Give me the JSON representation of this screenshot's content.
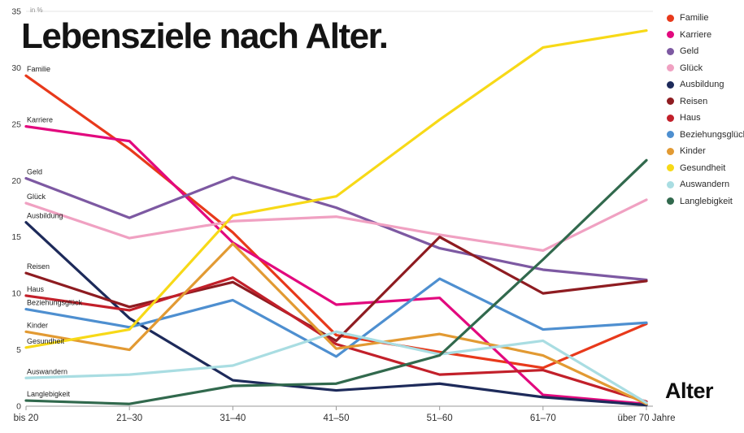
{
  "title": "Lebensziele nach Alter.",
  "chart_data": {
    "type": "line",
    "title": "Lebensziele nach Alter.",
    "xlabel": "Alter",
    "ylabel": "in %",
    "ylim": [
      0,
      35
    ],
    "y_ticks": [
      0,
      5,
      10,
      15,
      20,
      25,
      30,
      35
    ],
    "grid": false,
    "legend_position": "top-right",
    "categories": [
      "bis 20",
      "21–30",
      "31–40",
      "41–50",
      "51–60",
      "61–70",
      "über 70 Jahre"
    ],
    "series": [
      {
        "name": "Familie",
        "color": "#e8391b",
        "values": [
          29.3,
          22.8,
          15.4,
          6.3,
          4.8,
          3.4,
          7.3
        ]
      },
      {
        "name": "Karriere",
        "color": "#e2097e",
        "values": [
          24.8,
          23.5,
          14.5,
          9.0,
          9.6,
          1.0,
          0.2
        ]
      },
      {
        "name": "Geld",
        "color": "#7d59a2",
        "values": [
          20.2,
          16.7,
          20.3,
          17.6,
          14.0,
          12.1,
          11.2
        ]
      },
      {
        "name": "Glück",
        "color": "#f0a1c2",
        "values": [
          18.0,
          14.9,
          16.4,
          16.8,
          15.2,
          13.8,
          18.3
        ]
      },
      {
        "name": "Ausbildung",
        "color": "#1d2a5a",
        "values": [
          16.3,
          7.8,
          2.3,
          1.4,
          2.0,
          0.8,
          0.1
        ]
      },
      {
        "name": "Reisen",
        "color": "#8e1c21",
        "values": [
          11.8,
          8.8,
          11.0,
          5.8,
          15.0,
          10.0,
          11.1
        ]
      },
      {
        "name": "Haus",
        "color": "#c2202a",
        "values": [
          9.8,
          8.5,
          11.4,
          5.5,
          2.8,
          3.2,
          0.4
        ]
      },
      {
        "name": "Beziehungsglück",
        "color": "#4e8fd0",
        "values": [
          8.6,
          7.0,
          9.4,
          4.4,
          11.3,
          6.8,
          7.4
        ]
      },
      {
        "name": "Kinder",
        "color": "#e29a33",
        "values": [
          6.6,
          5.0,
          14.4,
          5.1,
          6.4,
          4.5,
          0.2
        ]
      },
      {
        "name": "Gesundheit",
        "color": "#f7d917",
        "values": [
          5.2,
          6.8,
          16.9,
          18.6,
          25.4,
          31.8,
          33.3
        ]
      },
      {
        "name": "Auswandern",
        "color": "#a9dde2",
        "values": [
          2.5,
          2.8,
          3.6,
          6.6,
          4.6,
          5.8,
          0.3
        ]
      },
      {
        "name": "Langlebigkeit",
        "color": "#31694d",
        "values": [
          0.5,
          0.2,
          1.8,
          2.0,
          4.5,
          13.0,
          21.8
        ]
      }
    ]
  }
}
